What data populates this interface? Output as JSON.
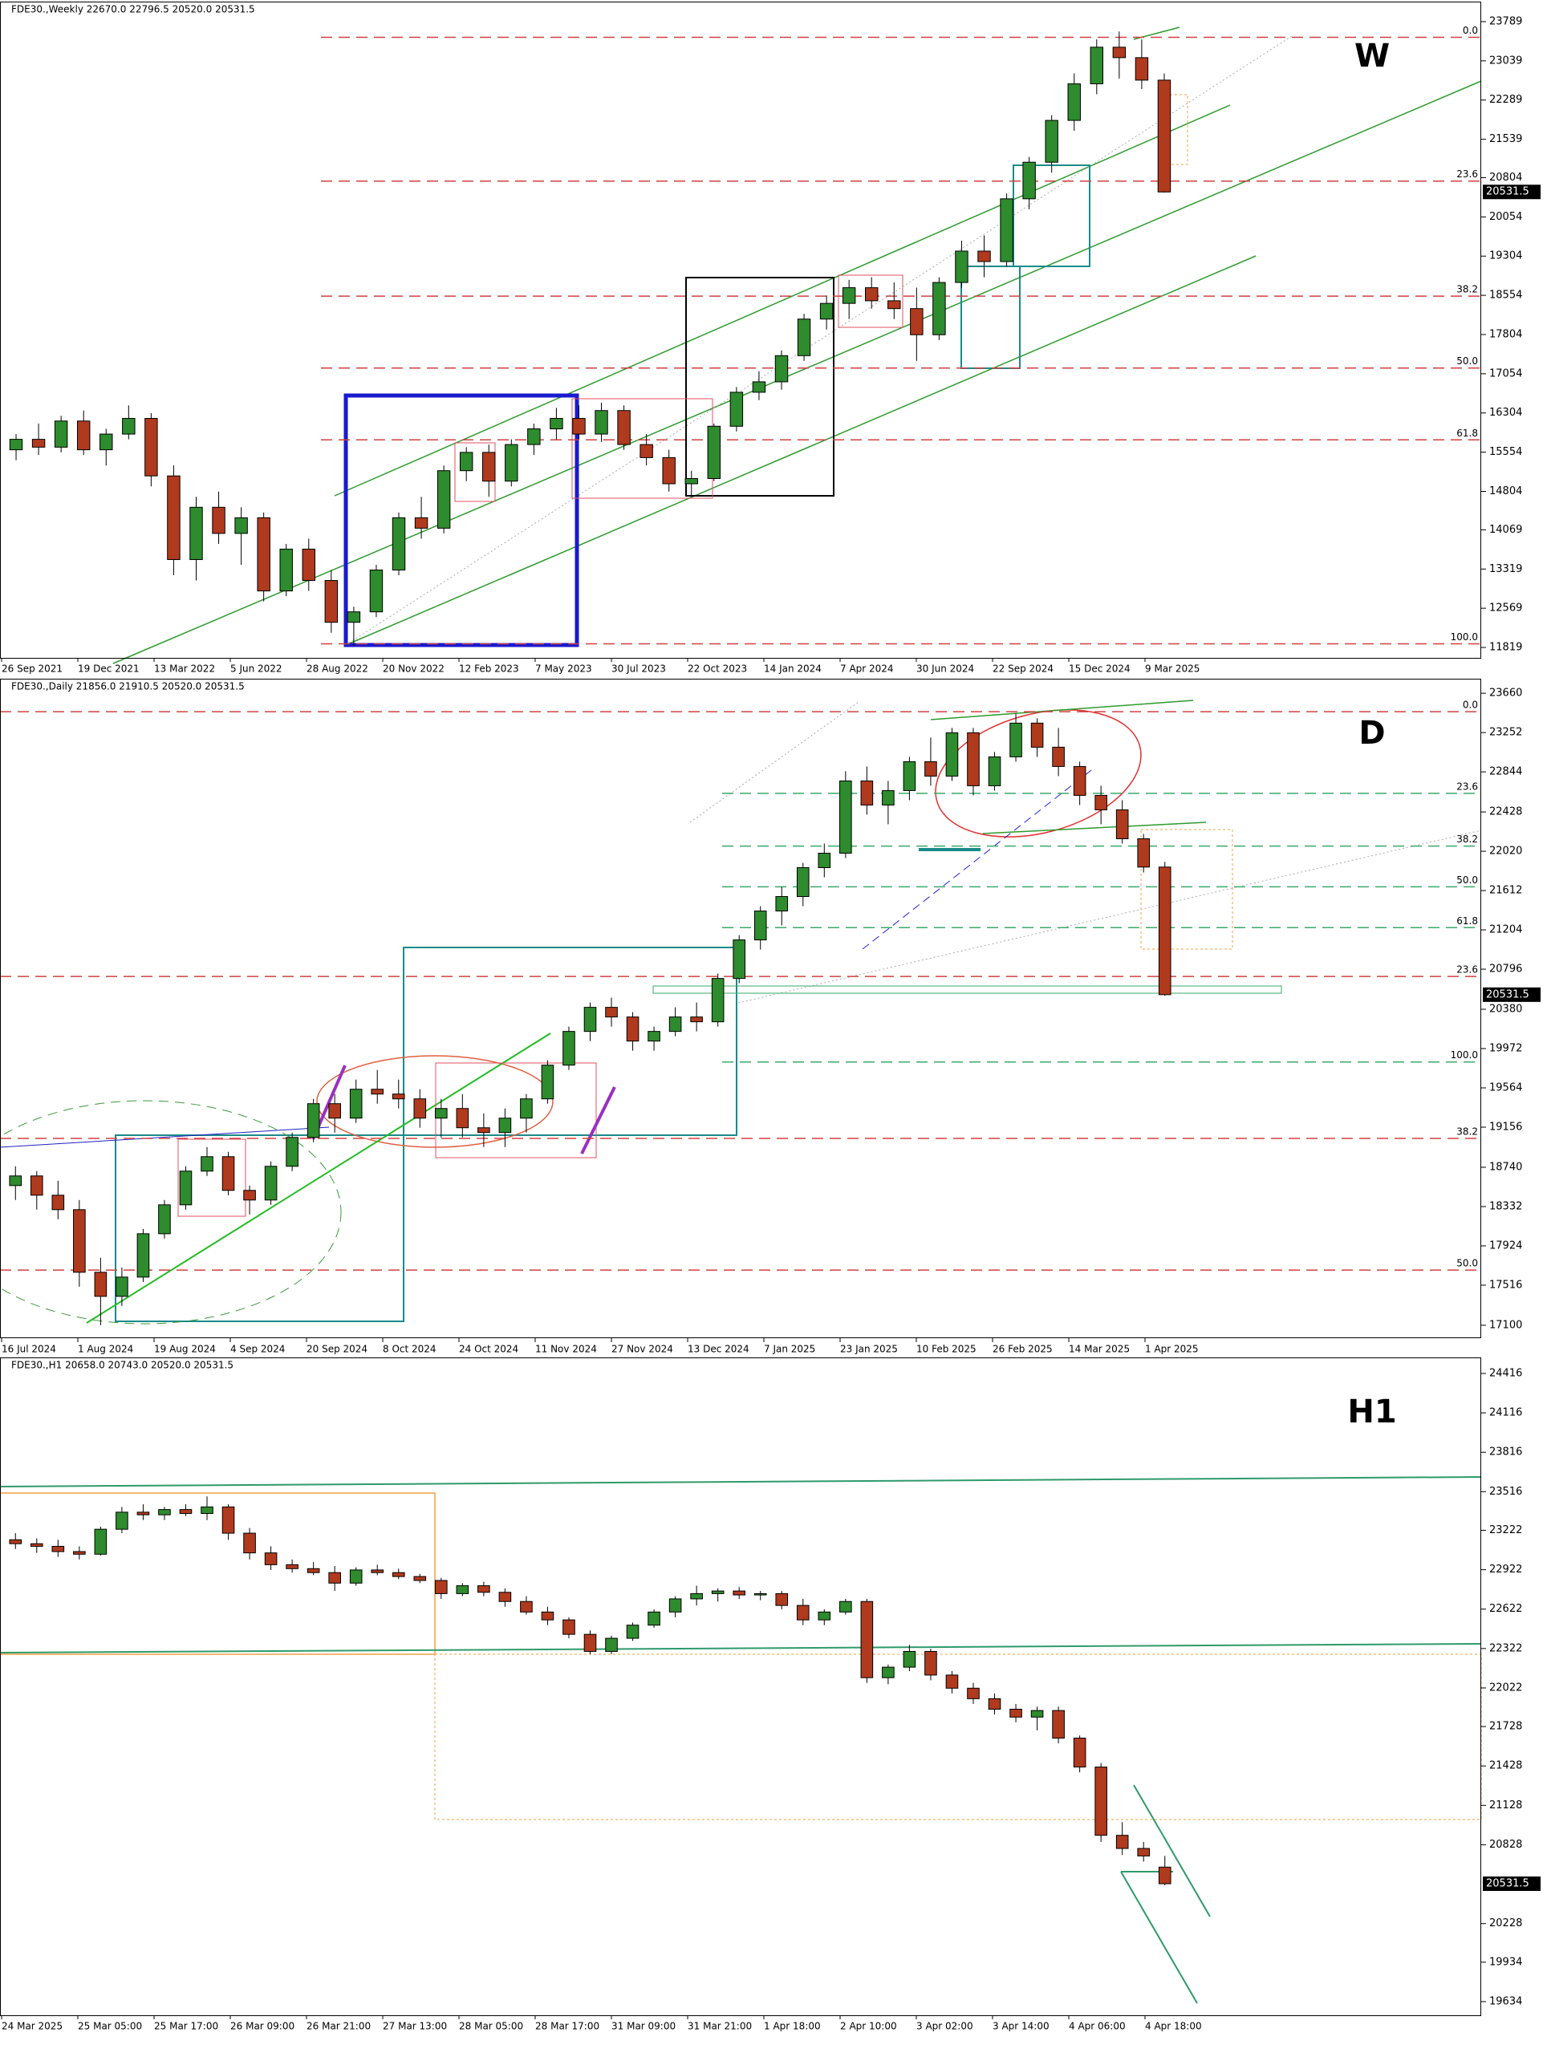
{
  "chart_data": [
    {
      "type": "candlestick",
      "header": "FDE30.,Weekly  22670.0 22796.5 20520.0 20531.5",
      "label": "W",
      "ylim": [
        11620,
        24172
      ],
      "yticks": [
        11819,
        12569,
        13319,
        14069,
        14804,
        15554,
        16304,
        17054,
        17804,
        18554,
        19304,
        20054,
        20804,
        21539,
        22289,
        23039,
        23789
      ],
      "xtick_labels": [
        "26 Sep 2021",
        "19 Dec 2021",
        "13 Mar 2022",
        "5 Jun 2022",
        "28 Aug 2022",
        "20 Nov 2022",
        "12 Feb 2023",
        "7 May 2023",
        "30 Jul 2023",
        "22 Oct 2023",
        "14 Jan 2024",
        "7 Apr 2024",
        "30 Jun 2024",
        "22 Sep 2024",
        "15 Dec 2024",
        "9 Mar 2025"
      ],
      "levels": [
        {
          "label": "0.0",
          "value": 23489,
          "color": "#d04040"
        },
        {
          "label": "23.6",
          "value": 20739,
          "color": "#d04040"
        },
        {
          "label": "38.2",
          "value": 18539,
          "color": "#d04040"
        },
        {
          "label": "50.0",
          "value": 17164,
          "color": "#d04040"
        },
        {
          "label": "61.8",
          "value": 15789,
          "color": "#d04040"
        },
        {
          "label": "100.0",
          "value": 11889,
          "color": "#d04040"
        }
      ],
      "up_color": "#2e8b2e",
      "down_color": "#b03a1e",
      "ohlc": [
        [
          15600,
          15900,
          15400,
          15800
        ],
        [
          15800,
          16100,
          15500,
          15650
        ],
        [
          15650,
          16250,
          15550,
          16150
        ],
        [
          16150,
          16350,
          15500,
          15600
        ],
        [
          15600,
          16000,
          15300,
          15900
        ],
        [
          15900,
          16450,
          15800,
          16200
        ],
        [
          16200,
          16300,
          14900,
          15100
        ],
        [
          15100,
          15300,
          13200,
          13500
        ],
        [
          13500,
          14700,
          13100,
          14500
        ],
        [
          14500,
          14800,
          13800,
          14000
        ],
        [
          14000,
          14500,
          13400,
          14300
        ],
        [
          14300,
          14400,
          12700,
          12900
        ],
        [
          12900,
          13800,
          12800,
          13700
        ],
        [
          13700,
          13900,
          12900,
          13100
        ],
        [
          13100,
          13300,
          12100,
          12300
        ],
        [
          12300,
          12600,
          11850,
          12500
        ],
        [
          12500,
          13400,
          12400,
          13300
        ],
        [
          13300,
          14400,
          13200,
          14300
        ],
        [
          14300,
          14700,
          13900,
          14100
        ],
        [
          14100,
          15300,
          14000,
          15200
        ],
        [
          15200,
          15650,
          15000,
          15550
        ],
        [
          15550,
          15700,
          14700,
          15000
        ],
        [
          15000,
          15800,
          14900,
          15700
        ],
        [
          15700,
          16100,
          15500,
          16000
        ],
        [
          16000,
          16400,
          15800,
          16200
        ],
        [
          16200,
          16450,
          15800,
          15900
        ],
        [
          15900,
          16500,
          15750,
          16350
        ],
        [
          16350,
          16450,
          15600,
          15700
        ],
        [
          15700,
          15900,
          15300,
          15450
        ],
        [
          15450,
          15600,
          14800,
          14950
        ],
        [
          14950,
          15200,
          14700,
          15050
        ],
        [
          15050,
          16100,
          15000,
          16050
        ],
        [
          16050,
          16800,
          15950,
          16700
        ],
        [
          16700,
          17100,
          16550,
          16900
        ],
        [
          16900,
          17500,
          16750,
          17400
        ],
        [
          17400,
          18200,
          17300,
          18100
        ],
        [
          18100,
          18550,
          17900,
          18400
        ],
        [
          18400,
          18850,
          18100,
          18700
        ],
        [
          18700,
          18900,
          18300,
          18450
        ],
        [
          18450,
          18800,
          18100,
          18300
        ],
        [
          18300,
          18700,
          17300,
          17800
        ],
        [
          17800,
          18900,
          17700,
          18800
        ],
        [
          18800,
          19600,
          18700,
          19400
        ],
        [
          19400,
          19700,
          18900,
          19200
        ],
        [
          19200,
          20500,
          19100,
          20400
        ],
        [
          20400,
          21200,
          20200,
          21100
        ],
        [
          21100,
          22000,
          20900,
          21900
        ],
        [
          21900,
          22800,
          21700,
          22600
        ],
        [
          22600,
          23450,
          22400,
          23300
        ],
        [
          23300,
          23600,
          22700,
          23100
        ],
        [
          23100,
          23450,
          22500,
          22670
        ],
        [
          22670,
          22796.5,
          20520,
          20531.5
        ]
      ]
    },
    {
      "type": "candlestick",
      "header": "FDE30.,Daily  21856.0 21910.5 20520.0 20531.5",
      "label": "D",
      "ylim": [
        16966,
        23811
      ],
      "yticks": [
        17100,
        17516,
        17924,
        18332,
        18740,
        19156,
        19564,
        19972,
        20380,
        20796,
        21204,
        21612,
        22020,
        22428,
        22844,
        23252,
        23660
      ],
      "xtick_labels": [
        "16 Jul 2024",
        "1 Aug 2024",
        "19 Aug 2024",
        "4 Sep 2024",
        "20 Sep 2024",
        "8 Oct 2024",
        "24 Oct 2024",
        "11 Nov 2024",
        "27 Nov 2024",
        "13 Dec 2024",
        "7 Jan 2025",
        "23 Jan 2025",
        "10 Feb 2025",
        "26 Feb 2025",
        "14 Mar 2025",
        "1 Apr 2025"
      ],
      "levels": [
        {
          "label": "0.0",
          "value": 23469,
          "color": "#d04040"
        },
        {
          "label": "23.6",
          "value": 20721,
          "color": "#d04040"
        },
        {
          "label": "38.2",
          "value": 19040,
          "color": "#d04040"
        },
        {
          "label": "50.0",
          "value": 17673,
          "color": "#d04040"
        },
        {
          "label": "23.6",
          "value": 22621,
          "color": "#3aaa6a"
        },
        {
          "label": "38.2",
          "value": 22074,
          "color": "#3aaa6a"
        },
        {
          "label": "50.0",
          "value": 21651,
          "color": "#3aaa6a"
        },
        {
          "label": "61.8",
          "value": 21227,
          "color": "#3aaa6a"
        },
        {
          "label": "100.0",
          "value": 19833,
          "color": "#3aaa6a"
        }
      ],
      "up_color": "#2e8b2e",
      "down_color": "#b03a1e",
      "ohlc": [
        [
          18550,
          18750,
          18400,
          18650
        ],
        [
          18650,
          18700,
          18300,
          18450
        ],
        [
          18450,
          18600,
          18200,
          18300
        ],
        [
          18300,
          18400,
          17500,
          17650
        ],
        [
          17650,
          17800,
          17100,
          17400
        ],
        [
          17400,
          17700,
          17300,
          17600
        ],
        [
          17600,
          18100,
          17550,
          18050
        ],
        [
          18050,
          18400,
          18000,
          18350
        ],
        [
          18350,
          18750,
          18300,
          18700
        ],
        [
          18700,
          18950,
          18650,
          18850
        ],
        [
          18850,
          18900,
          18450,
          18500
        ],
        [
          18500,
          18550,
          18250,
          18400
        ],
        [
          18400,
          18800,
          18350,
          18750
        ],
        [
          18750,
          19100,
          18700,
          19050
        ],
        [
          19050,
          19450,
          19000,
          19400
        ],
        [
          19400,
          19500,
          19100,
          19250
        ],
        [
          19250,
          19650,
          19200,
          19550
        ],
        [
          19550,
          19750,
          19400,
          19500
        ],
        [
          19500,
          19650,
          19350,
          19450
        ],
        [
          19450,
          19550,
          19150,
          19250
        ],
        [
          19250,
          19450,
          19050,
          19350
        ],
        [
          19350,
          19500,
          19050,
          19150
        ],
        [
          19150,
          19300,
          18950,
          19100
        ],
        [
          19100,
          19350,
          18950,
          19250
        ],
        [
          19250,
          19500,
          19100,
          19450
        ],
        [
          19450,
          19850,
          19400,
          19800
        ],
        [
          19800,
          20200,
          19750,
          20150
        ],
        [
          20150,
          20450,
          20050,
          20400
        ],
        [
          20400,
          20500,
          20200,
          20300
        ],
        [
          20300,
          20350,
          19950,
          20050
        ],
        [
          20050,
          20200,
          19950,
          20150
        ],
        [
          20150,
          20400,
          20100,
          20300
        ],
        [
          20300,
          20450,
          20150,
          20250
        ],
        [
          20250,
          20750,
          20200,
          20700
        ],
        [
          20700,
          21150,
          20650,
          21100
        ],
        [
          21100,
          21450,
          21000,
          21400
        ],
        [
          21400,
          21650,
          21250,
          21550
        ],
        [
          21550,
          21900,
          21450,
          21850
        ],
        [
          21850,
          22100,
          21750,
          22000
        ],
        [
          22000,
          22850,
          21950,
          22750
        ],
        [
          22750,
          22900,
          22400,
          22500
        ],
        [
          22500,
          22750,
          22300,
          22650
        ],
        [
          22650,
          23000,
          22550,
          22950
        ],
        [
          22950,
          23200,
          22700,
          22800
        ],
        [
          22800,
          23300,
          22750,
          23250
        ],
        [
          23250,
          23300,
          22600,
          22700
        ],
        [
          22700,
          23050,
          22650,
          23000
        ],
        [
          23000,
          23450,
          22950,
          23350
        ],
        [
          23350,
          23400,
          23000,
          23100
        ],
        [
          23100,
          23300,
          22800,
          22900
        ],
        [
          22900,
          22950,
          22500,
          22600
        ],
        [
          22600,
          22700,
          22300,
          22450
        ],
        [
          22450,
          22550,
          22100,
          22150
        ],
        [
          22150,
          22200,
          21800,
          21856
        ],
        [
          21856,
          21910.5,
          20520,
          20531.5
        ]
      ]
    },
    {
      "type": "candlestick",
      "header": "FDE30.,H1  20658.0 20743.0 20520.0 20531.5",
      "label": "H1",
      "ylim": [
        19530,
        24538
      ],
      "yticks": [
        19634,
        19934,
        20228,
        20828,
        21128,
        21428,
        21728,
        22022,
        22322,
        22622,
        22922,
        23222,
        23516,
        23816,
        24116,
        24416
      ],
      "xtick_labels": [
        "24 Mar 2025",
        "25 Mar 05:00",
        "25 Mar 17:00",
        "26 Mar 09:00",
        "26 Mar 21:00",
        "27 Mar 13:00",
        "28 Mar 05:00",
        "28 Mar 17:00",
        "31 Mar 09:00",
        "31 Mar 21:00",
        "1 Apr 18:00",
        "2 Apr 10:00",
        "3 Apr 02:00",
        "3 Apr 14:00",
        "4 Apr 06:00",
        "4 Apr 18:00"
      ],
      "up_color": "#2e8b2e",
      "down_color": "#b03a1e",
      "ohlc": [
        [
          23150,
          23200,
          23080,
          23120
        ],
        [
          23120,
          23160,
          23050,
          23100
        ],
        [
          23100,
          23150,
          23020,
          23060
        ],
        [
          23060,
          23100,
          23000,
          23040
        ],
        [
          23040,
          23250,
          23030,
          23230
        ],
        [
          23230,
          23400,
          23200,
          23360
        ],
        [
          23360,
          23420,
          23300,
          23340
        ],
        [
          23340,
          23400,
          23300,
          23380
        ],
        [
          23380,
          23420,
          23330,
          23350
        ],
        [
          23350,
          23480,
          23300,
          23400
        ],
        [
          23400,
          23420,
          23150,
          23200
        ],
        [
          23200,
          23240,
          23000,
          23050
        ],
        [
          23050,
          23100,
          22920,
          22960
        ],
        [
          22960,
          23000,
          22900,
          22930
        ],
        [
          22930,
          22980,
          22880,
          22900
        ],
        [
          22900,
          22950,
          22760,
          22820
        ],
        [
          22820,
          22940,
          22800,
          22920
        ],
        [
          22920,
          22960,
          22880,
          22900
        ],
        [
          22900,
          22930,
          22850,
          22870
        ],
        [
          22870,
          22890,
          22820,
          22840
        ],
        [
          22840,
          22860,
          22700,
          22740
        ],
        [
          22740,
          22820,
          22720,
          22800
        ],
        [
          22800,
          22830,
          22720,
          22750
        ],
        [
          22750,
          22780,
          22640,
          22680
        ],
        [
          22680,
          22720,
          22580,
          22600
        ],
        [
          22600,
          22640,
          22500,
          22540
        ],
        [
          22540,
          22560,
          22400,
          22430
        ],
        [
          22430,
          22460,
          22280,
          22300
        ],
        [
          22300,
          22420,
          22280,
          22400
        ],
        [
          22400,
          22520,
          22380,
          22500
        ],
        [
          22500,
          22620,
          22480,
          22600
        ],
        [
          22600,
          22720,
          22560,
          22700
        ],
        [
          22700,
          22800,
          22650,
          22740
        ],
        [
          22740,
          22780,
          22680,
          22760
        ],
        [
          22760,
          22790,
          22700,
          22730
        ],
        [
          22730,
          22760,
          22690,
          22740
        ],
        [
          22740,
          22760,
          22620,
          22650
        ],
        [
          22650,
          22700,
          22500,
          22540
        ],
        [
          22540,
          22620,
          22500,
          22600
        ],
        [
          22600,
          22700,
          22580,
          22680
        ],
        [
          22680,
          22700,
          22060,
          22100
        ],
        [
          22100,
          22200,
          22050,
          22180
        ],
        [
          22180,
          22350,
          22150,
          22300
        ],
        [
          22300,
          22320,
          22080,
          22120
        ],
        [
          22120,
          22150,
          21980,
          22020
        ],
        [
          22020,
          22060,
          21900,
          21940
        ],
        [
          21940,
          21980,
          21820,
          21860
        ],
        [
          21860,
          21900,
          21760,
          21800
        ],
        [
          21800,
          21880,
          21700,
          21850
        ],
        [
          21850,
          21880,
          21600,
          21640
        ],
        [
          21640,
          21660,
          21380,
          21420
        ],
        [
          21420,
          21450,
          20850,
          20900
        ],
        [
          20900,
          21000,
          20750,
          20800
        ],
        [
          20800,
          20850,
          20700,
          20743
        ],
        [
          20658,
          20743,
          20520,
          20531.5
        ]
      ]
    }
  ]
}
